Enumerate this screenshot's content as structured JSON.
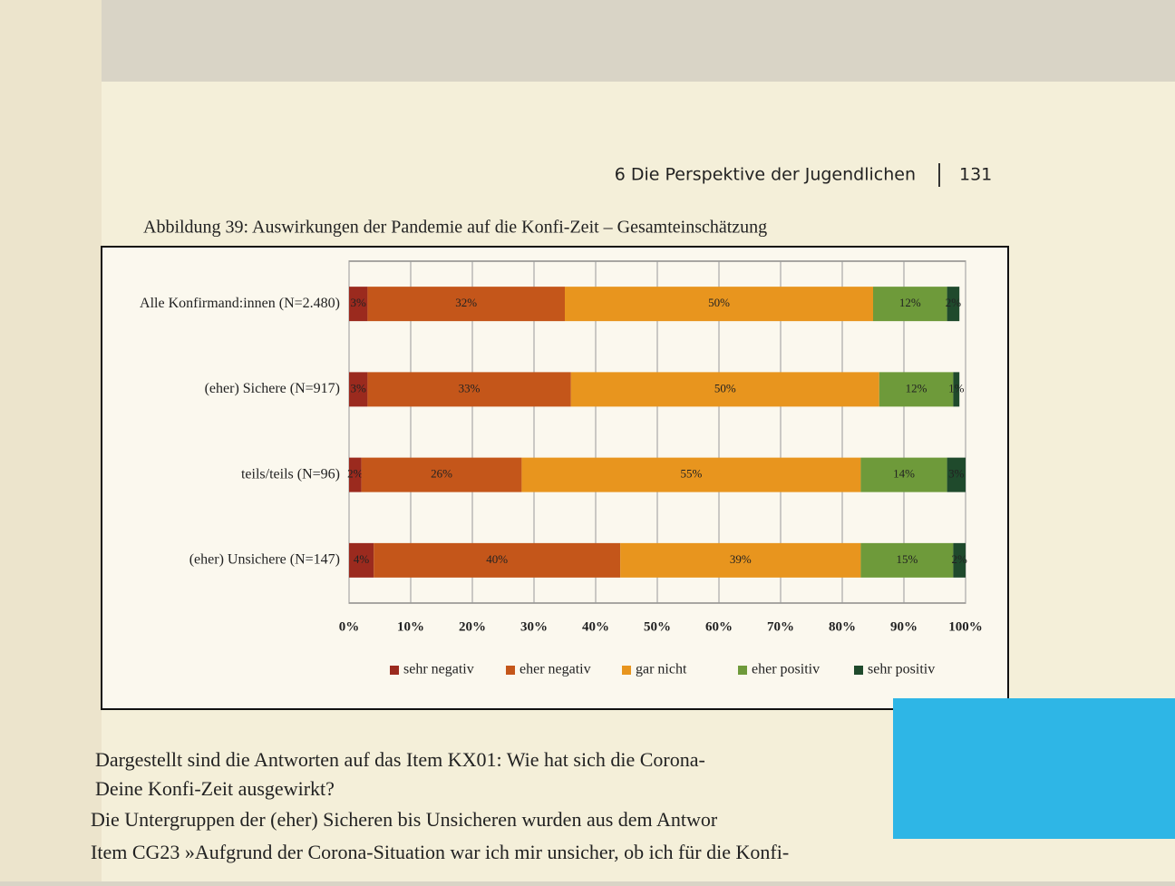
{
  "page_header": {
    "chapter": "6 Die Perspektive der Jugendlichen",
    "page_number": "131"
  },
  "chart_data": {
    "type": "stacked_bar",
    "title": "Abbildung 39: Auswirkungen der Pandemie auf die Konfi-Zeit – Gesamteinschätzung",
    "categories": [
      "Alle Konfirmand:innen (N=2.480)",
      "(eher) Sichere (N=917)",
      "teils/teils (N=96)",
      "(eher) Unsichere (N=147)"
    ],
    "series": [
      {
        "name": "sehr negativ",
        "color": "#9b2a1e",
        "values": [
          3,
          3,
          2,
          4
        ],
        "value_labels": [
          "3%",
          "3%",
          "2%",
          "4%"
        ]
      },
      {
        "name": "eher negativ",
        "color": "#c4561a",
        "values": [
          32,
          33,
          26,
          40
        ],
        "value_labels": [
          "32%",
          "33%",
          "26%",
          "40%"
        ]
      },
      {
        "name": "gar nicht",
        "color": "#e8951e",
        "values": [
          50,
          50,
          55,
          39
        ],
        "value_labels": [
          "50%",
          "50%",
          "55%",
          "39%"
        ]
      },
      {
        "name": "eher positiv",
        "color": "#6e9a3a",
        "values": [
          12,
          12,
          14,
          15
        ],
        "value_labels": [
          "12%",
          "12%",
          "14%",
          "15%"
        ]
      },
      {
        "name": "sehr positiv",
        "color": "#1f4a2c",
        "values": [
          2,
          1,
          3,
          2
        ],
        "value_labels": [
          "2%",
          "1%",
          "3%",
          "2%"
        ]
      }
    ],
    "xlim": [
      0,
      100
    ],
    "xticks": [
      {
        "value": 0,
        "label": "0%"
      },
      {
        "value": 10,
        "label": "10%"
      },
      {
        "value": 20,
        "label": "20%"
      },
      {
        "value": 30,
        "label": "30%"
      },
      {
        "value": 40,
        "label": "40%"
      },
      {
        "value": 50,
        "label": "50%"
      },
      {
        "value": 60,
        "label": "60%"
      },
      {
        "value": 70,
        "label": "70%"
      },
      {
        "value": 80,
        "label": "80%"
      },
      {
        "value": 90,
        "label": "90%"
      },
      {
        "value": 100,
        "label": "100%"
      }
    ],
    "grid": true,
    "legend": "bottom"
  },
  "body_text": [
    "Dargestellt sind die Antworten auf das Item KX01: Wie hat sich die Corona-",
    "Deine Konfi-Zeit ausgewirkt?",
    "Die Untergruppen der (eher) Sicheren bis Unsicheren wurden aus dem Antwor",
    "Item CG23 »Aufgrund der Corona-Situation war ich mir unsicher, ob ich für die Konfi-"
  ]
}
